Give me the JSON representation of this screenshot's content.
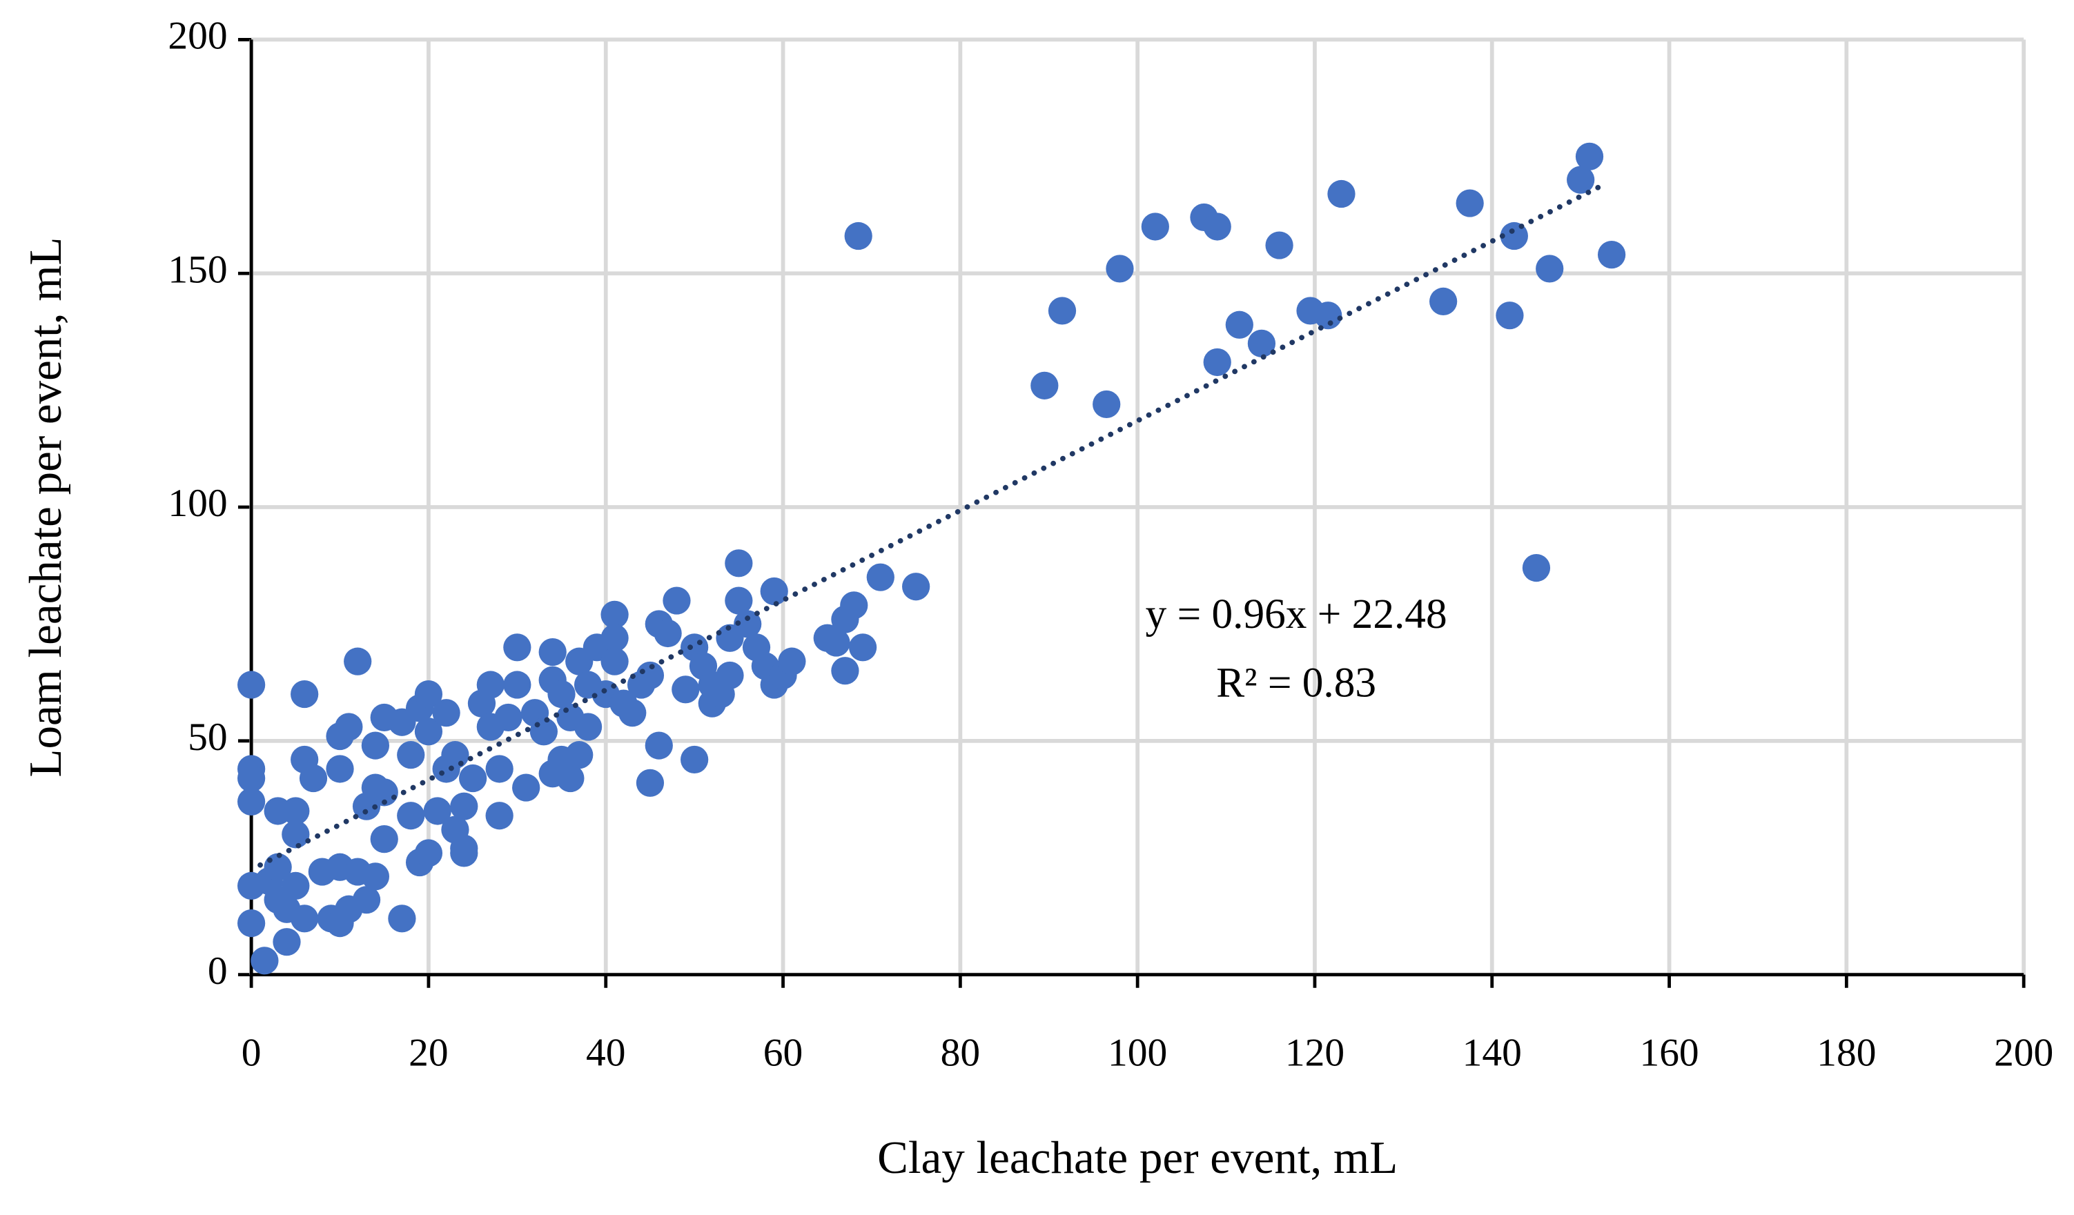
{
  "chart_data": {
    "type": "scatter",
    "xlabel": "Clay leachate per event, mL",
    "ylabel": "Loam leachate per event, mL",
    "xlim": [
      0,
      200
    ],
    "ylim": [
      0,
      200
    ],
    "xticks": [
      0,
      20,
      40,
      60,
      80,
      100,
      120,
      140,
      160,
      180,
      200
    ],
    "yticks": [
      0,
      50,
      100,
      150,
      200
    ],
    "grid": true,
    "color": "#4472c4",
    "x": [
      0,
      0,
      0,
      0,
      0,
      0,
      1.5,
      2,
      3,
      3,
      3,
      4,
      4,
      5,
      5,
      5,
      6,
      6,
      6,
      7,
      8,
      9,
      10,
      10,
      10,
      10,
      11,
      11,
      12,
      12,
      13,
      13,
      14,
      14,
      14,
      15,
      15,
      15,
      17,
      17,
      18,
      18,
      19,
      19,
      20,
      20,
      20,
      21,
      22,
      22,
      23,
      23,
      24,
      24,
      24,
      25,
      26,
      27,
      27,
      28,
      28,
      29,
      30,
      30,
      31,
      32,
      33,
      34,
      34,
      34,
      35,
      35,
      36,
      36,
      37,
      37,
      38,
      38,
      39,
      40,
      41,
      41,
      41,
      42,
      43,
      44,
      45,
      45,
      46,
      46,
      47,
      48,
      49,
      50,
      50,
      51,
      52,
      52,
      53,
      54,
      54,
      55,
      55,
      56,
      57,
      58,
      59,
      59,
      60,
      61,
      65,
      66,
      67,
      67,
      68,
      69,
      68.5,
      71,
      75,
      89.5,
      91.5,
      96.5,
      98,
      102,
      107.5,
      109,
      109,
      111.5,
      114,
      116,
      119.5,
      121.5,
      123,
      134.5,
      137.5,
      142,
      142.5,
      145,
      146.5,
      150,
      151,
      153.5
    ],
    "y": [
      62,
      44,
      42,
      37,
      19,
      11,
      3,
      20,
      35,
      23,
      16,
      14,
      7,
      35,
      30,
      19,
      46,
      60,
      12,
      42,
      22,
      12,
      44,
      51,
      23,
      11,
      53,
      14,
      67,
      22,
      16,
      36,
      49,
      40,
      21,
      55,
      39,
      29,
      54,
      12,
      34,
      47,
      57,
      24,
      26,
      60,
      52,
      35,
      56,
      44,
      47,
      31,
      36,
      27,
      26,
      42,
      58,
      62,
      53,
      44,
      34,
      55,
      70,
      62,
      40,
      56,
      52,
      63,
      43,
      69,
      60,
      46,
      55,
      42,
      67,
      47,
      53,
      62,
      70,
      60,
      77,
      72,
      67,
      58,
      56,
      62,
      64,
      41,
      75,
      49,
      73,
      80,
      61,
      70,
      46,
      66,
      58,
      62,
      60,
      72,
      64,
      80,
      88,
      75,
      70,
      66,
      62,
      82,
      64,
      67,
      72,
      71,
      65,
      76,
      79,
      70,
      158,
      85,
      83,
      126,
      142,
      122,
      151,
      160,
      162,
      160,
      131,
      139,
      135,
      156,
      142,
      141,
      167,
      144,
      165,
      141,
      158,
      87,
      151,
      170,
      175,
      154
    ],
    "trendline": {
      "slope": 0.96,
      "intercept": 22.48,
      "x_range": [
        1,
        153
      ],
      "color": "#203864"
    },
    "annotations": [
      "y = 0.96x + 22.48",
      "R² = 0.83"
    ]
  }
}
